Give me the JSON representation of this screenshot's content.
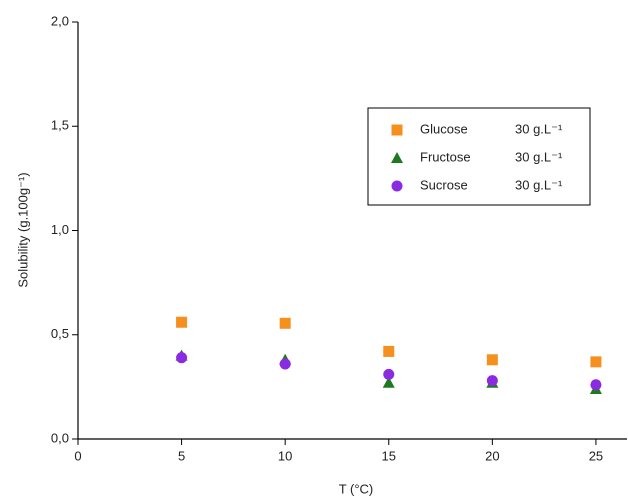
{
  "chart_data": {
    "type": "scatter",
    "x_label": "T (°C)",
    "y_label": "Solubility (g.100g⁻¹)",
    "xlim": [
      0,
      26.5
    ],
    "ylim": [
      0,
      2.0
    ],
    "xticks": [
      0,
      5,
      10,
      15,
      20,
      25
    ],
    "yticks": [
      {
        "value": 0,
        "label": "0,0"
      },
      {
        "value": 0.5,
        "label": "0,5"
      },
      {
        "value": 1.0,
        "label": "1,0"
      },
      {
        "value": 1.5,
        "label": "1,5"
      },
      {
        "value": 2.0,
        "label": "2,0"
      }
    ],
    "x": [
      5,
      10,
      15,
      20,
      25
    ],
    "series": [
      {
        "name": "Glucose",
        "concentration": "30 g.L⁻¹",
        "marker": "square",
        "color": "#f5901e",
        "values": [
          0.56,
          0.555,
          0.42,
          0.38,
          0.37
        ]
      },
      {
        "name": "Fructose",
        "concentration": "30 g.L⁻¹",
        "marker": "triangle",
        "color": "#1f7a1f",
        "values": [
          0.4,
          0.38,
          0.27,
          0.27,
          0.24
        ]
      },
      {
        "name": "Sucrose",
        "concentration": "30 g.L⁻¹",
        "marker": "circle",
        "color": "#8a2be2",
        "values": [
          0.39,
          0.36,
          0.31,
          0.28,
          0.26
        ]
      }
    ]
  }
}
